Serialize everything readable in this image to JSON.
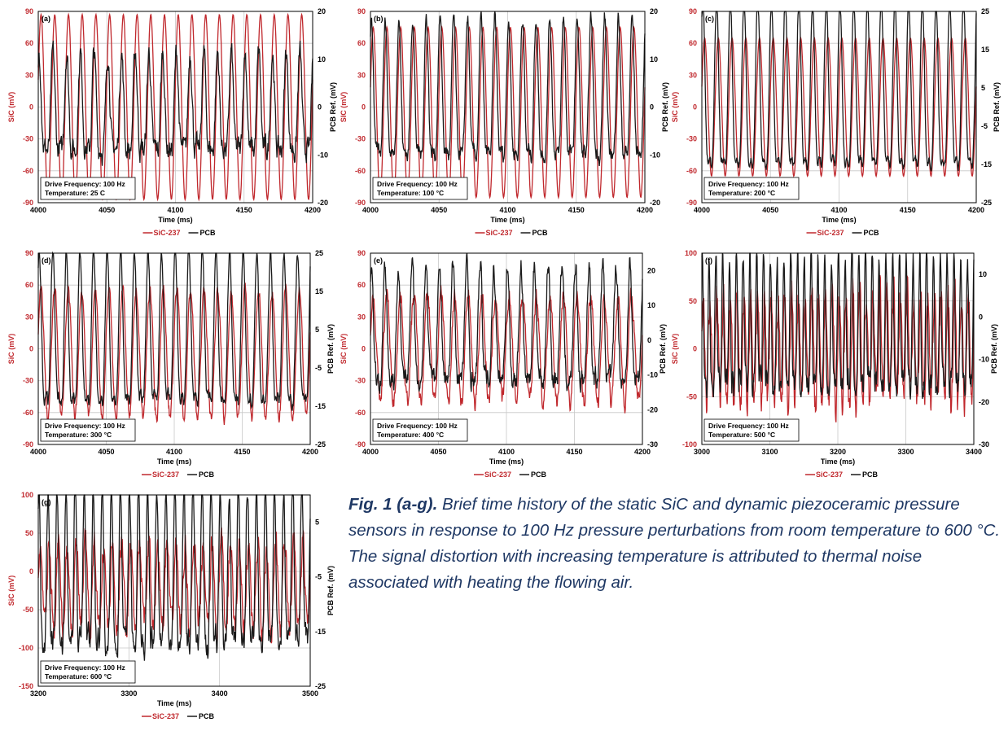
{
  "colors": {
    "sic": "#c0282d",
    "pcb": "#1a1a1a",
    "grid": "#c8c8c8",
    "caption": "#1f3864"
  },
  "chart_data": [
    {
      "type": "line",
      "panel_label": "(a)",
      "xlabel": "Time (ms)",
      "ylabel_left": "SiC (mV)",
      "ylabel_right": "PCB Ref. (mV)",
      "xlim": [
        4000,
        4200
      ],
      "xticks": [
        4000,
        4050,
        4100,
        4150,
        4200
      ],
      "ylim_left": [
        -90,
        90
      ],
      "yticks_left": [
        -90,
        -60,
        -30,
        0,
        30,
        60,
        90
      ],
      "ylim_right": [
        -20,
        20
      ],
      "yticks_right": [
        -20,
        -10,
        0,
        10,
        20
      ],
      "annotation": [
        "Drive Frequency: 100 Hz",
        "Temperature: 25 C"
      ],
      "legend": [
        "SiC-237",
        "PCB"
      ],
      "series": [
        {
          "name": "SiC-237",
          "axis": "left",
          "frequency_hz": 100,
          "amplitude": 87,
          "offset": 0,
          "noise": 0
        },
        {
          "name": "PCB",
          "axis": "right",
          "frequency_hz": 100,
          "amplitude": 10,
          "offset": -2,
          "noise": 3
        }
      ]
    },
    {
      "type": "line",
      "panel_label": "(b)",
      "xlabel": "Time (ms)",
      "ylabel_left": "SIC (mV)",
      "ylabel_right": "PCB Ref. (mV)",
      "xlim": [
        4000,
        4200
      ],
      "xticks": [
        4000,
        4050,
        4100,
        4150,
        4200
      ],
      "ylim_left": [
        -90,
        90
      ],
      "yticks_left": [
        -90,
        -60,
        -30,
        0,
        30,
        60,
        90
      ],
      "ylim_right": [
        -20,
        20
      ],
      "yticks_right": [
        -20,
        -10,
        0,
        10,
        20
      ],
      "annotation": [
        "Drive Frequency: 100 Hz",
        "Temperature: 100 °C"
      ],
      "legend": [
        "SiC-237",
        "PCB"
      ],
      "series": [
        {
          "name": "SiC-237",
          "axis": "left",
          "frequency_hz": 100,
          "amplitude": 80,
          "offset": -5,
          "noise": 0
        },
        {
          "name": "PCB",
          "axis": "right",
          "frequency_hz": 100,
          "amplitude": 14,
          "offset": 0,
          "noise": 2
        }
      ]
    },
    {
      "type": "line",
      "panel_label": "(c)",
      "xlabel": "Time (ms)",
      "ylabel_left": "SiC (mV)",
      "ylabel_right": "PCB Ref. (mV)",
      "xlim": [
        4000,
        4200
      ],
      "xticks": [
        4000,
        4050,
        4100,
        4150,
        4200
      ],
      "ylim_left": [
        -90,
        90
      ],
      "yticks_left": [
        -90,
        -60,
        -30,
        0,
        30,
        60,
        90
      ],
      "ylim_right": [
        -25,
        25
      ],
      "yticks_right": [
        -25,
        -15,
        -5,
        5,
        15,
        25
      ],
      "annotation": [
        "Drive Frequency: 100 Hz",
        "Temperature: 200 °C"
      ],
      "legend": [
        "SiC-237",
        "PCB"
      ],
      "series": [
        {
          "name": "SiC-237",
          "axis": "left",
          "frequency_hz": 100,
          "amplitude": 65,
          "offset": 0,
          "noise": 0
        },
        {
          "name": "PCB",
          "axis": "right",
          "frequency_hz": 100,
          "amplitude": 21,
          "offset": 0,
          "noise": 1.5
        }
      ]
    },
    {
      "type": "line",
      "panel_label": "(d)",
      "xlabel": "Time (ms)",
      "ylabel_left": "SiC (mV)",
      "ylabel_right": "PCB Ref. (mV)",
      "xlim": [
        4000,
        4200
      ],
      "xticks": [
        4000,
        4050,
        4100,
        4150,
        4200
      ],
      "ylim_left": [
        -90,
        90
      ],
      "yticks_left": [
        -90,
        -60,
        -30,
        0,
        30,
        60,
        90
      ],
      "ylim_right": [
        -25,
        25
      ],
      "yticks_right": [
        -25,
        -15,
        -5,
        5,
        15,
        25
      ],
      "annotation": [
        "Drive Frequency: 100 Hz",
        "Temperature: 300 °C"
      ],
      "legend": [
        "SiC-237",
        "PCB"
      ],
      "series": [
        {
          "name": "SiC-237",
          "axis": "left",
          "frequency_hz": 100,
          "amplitude": 60,
          "offset": -5,
          "noise": 8
        },
        {
          "name": "PCB",
          "axis": "right",
          "frequency_hz": 100,
          "amplitude": 19,
          "offset": 0,
          "noise": 2
        }
      ]
    },
    {
      "type": "line",
      "panel_label": "(e)",
      "xlabel": "Time (ms)",
      "ylabel_left": "SiC (mV)",
      "ylabel_right": "PCB Ref. (mV)",
      "xlim": [
        4000,
        4200
      ],
      "xticks": [
        4000,
        4050,
        4100,
        4150,
        4200
      ],
      "ylim_left": [
        -90,
        90
      ],
      "yticks_left": [
        -90,
        -60,
        -30,
        0,
        30,
        60,
        90
      ],
      "ylim_right": [
        -30,
        25
      ],
      "yticks_right": [
        -30,
        -20,
        -10,
        0,
        10,
        20
      ],
      "annotation": [
        "Drive Frequency: 100 Hz",
        "Temperature: 400 °C"
      ],
      "legend": [
        "SiC-237",
        "PCB"
      ],
      "series": [
        {
          "name": "SiC-237",
          "axis": "left",
          "frequency_hz": 100,
          "amplitude": 50,
          "offset": 0,
          "noise": 12
        },
        {
          "name": "PCB",
          "axis": "right",
          "frequency_hz": 100,
          "amplitude": 16,
          "offset": 0,
          "noise": 4
        }
      ]
    },
    {
      "type": "line",
      "panel_label": "(f)",
      "xlabel": "Time (ms)",
      "ylabel_left": "SiC (mV)",
      "ylabel_right": "PCB Ref. (mV)",
      "xlim": [
        3000,
        3400
      ],
      "xticks": [
        3000,
        3100,
        3200,
        3300,
        3400
      ],
      "ylim_left": [
        -100,
        100
      ],
      "yticks_left": [
        -100,
        -50,
        0,
        50,
        100
      ],
      "ylim_right": [
        -30,
        15
      ],
      "yticks_right": [
        -30,
        -20,
        -10,
        0,
        10
      ],
      "annotation": [
        "Drive Frequency: 100 Hz",
        "Temperature: 500 °C"
      ],
      "legend": [
        "SiC-237",
        "PCB"
      ],
      "series": [
        {
          "name": "SiC-237",
          "axis": "left",
          "frequency_hz": 100,
          "amplitude": 55,
          "offset": 0,
          "noise": 25
        },
        {
          "name": "PCB",
          "axis": "right",
          "frequency_hz": 100,
          "amplitude": 15,
          "offset": -5,
          "noise": 4
        }
      ]
    },
    {
      "type": "line",
      "panel_label": "(g)",
      "xlabel": "Time (ms)",
      "ylabel_left": "SiC (mV)",
      "ylabel_right": "PCB Ref. (mV)",
      "xlim": [
        3200,
        3500
      ],
      "xticks": [
        3200,
        3300,
        3400,
        3500
      ],
      "ylim_left": [
        -150,
        100
      ],
      "yticks_left": [
        -150,
        -100,
        -50,
        0,
        50,
        100
      ],
      "ylim_right": [
        -25,
        10
      ],
      "yticks_right": [
        -25,
        -15,
        -5,
        5
      ],
      "annotation": [
        "Drive Frequency: 100 Hz",
        "Temperature: 600 °C"
      ],
      "legend": [
        "SiC-237",
        "PCB"
      ],
      "series": [
        {
          "name": "SiC-237",
          "axis": "left",
          "frequency_hz": 100,
          "amplitude": 55,
          "offset": -20,
          "noise": 25
        },
        {
          "name": "PCB",
          "axis": "right",
          "frequency_hz": 100,
          "amplitude": 14,
          "offset": -7,
          "noise": 3
        }
      ]
    }
  ],
  "caption": {
    "label": "Fig. 1 (a-g).",
    "text": " Brief time history of the static SiC and dynamic piezoceramic pressure sensors in response to 100 Hz pressure perturbations from room temperature to 600 °C.  The signal distortion with increasing temperature is attributed to thermal noise associated with heating the flowing air."
  }
}
